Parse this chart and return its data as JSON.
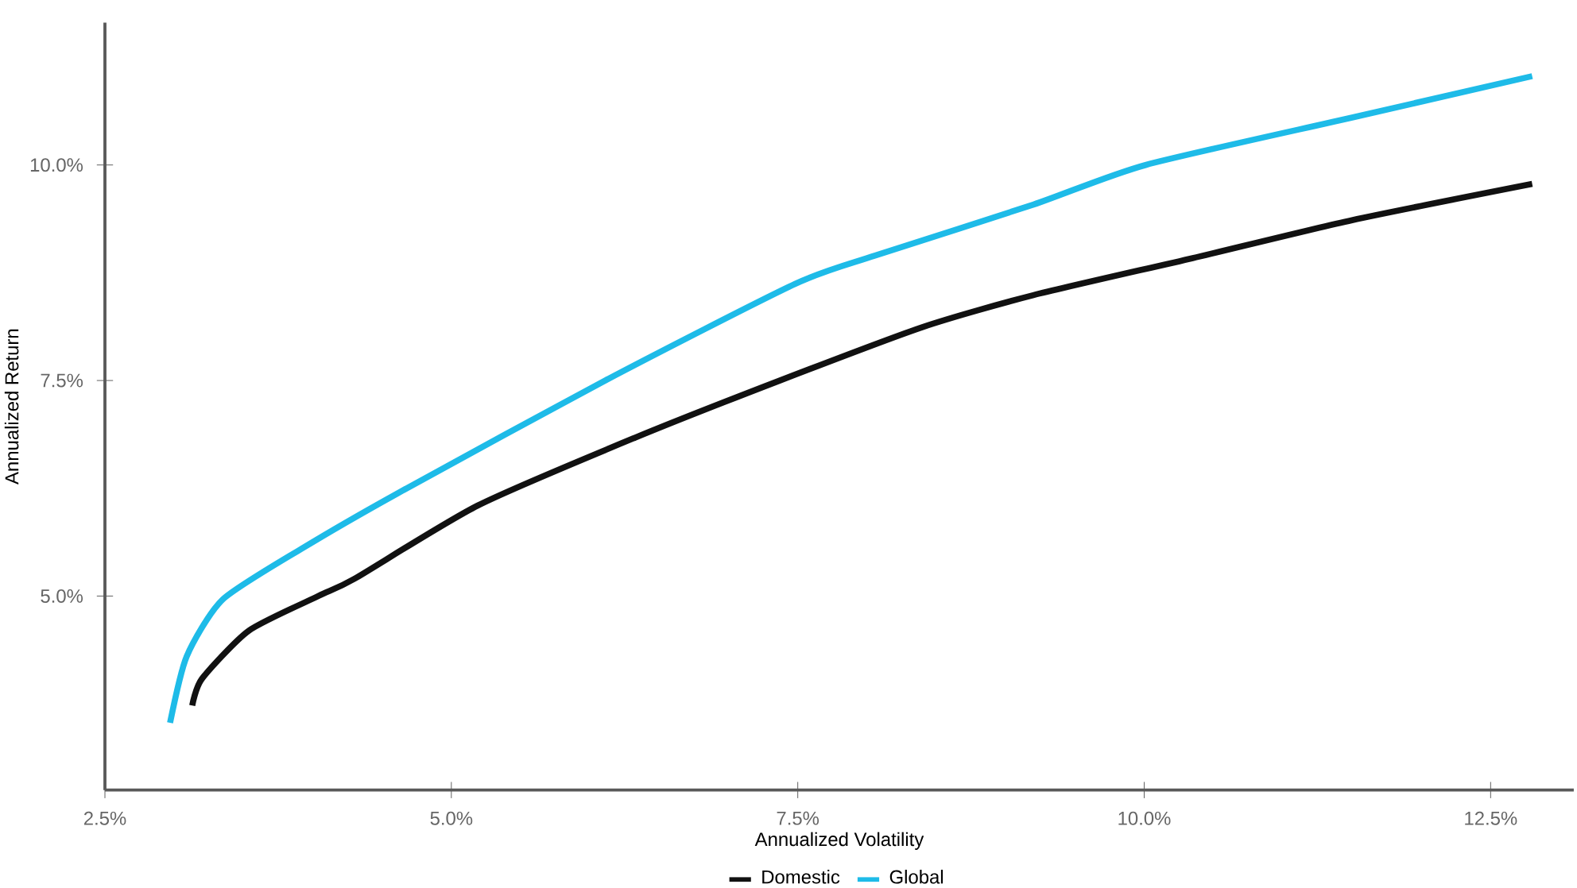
{
  "chart_data": {
    "type": "line",
    "xlabel": "Annualized Volatility",
    "ylabel": "Annualized Return",
    "xlim": [
      2.5,
      13.1
    ],
    "ylim": [
      2.75,
      11.65
    ],
    "xticks": [
      {
        "value": 2.5,
        "label": "2.5%"
      },
      {
        "value": 5.0,
        "label": "5.0%"
      },
      {
        "value": 7.5,
        "label": "7.5%"
      },
      {
        "value": 10.0,
        "label": "10.0%"
      },
      {
        "value": 12.5,
        "label": "12.5%"
      }
    ],
    "yticks": [
      {
        "value": 5.0,
        "label": "5.0%"
      },
      {
        "value": 7.5,
        "label": "7.5%"
      },
      {
        "value": 10.0,
        "label": "10.0%"
      }
    ],
    "grid": false,
    "legend": "bottom",
    "marker": "none",
    "line_style": "solid",
    "series": [
      {
        "name": "Domestic",
        "color": "#111111",
        "x": [
          3.13,
          3.2,
          3.54,
          4.04,
          4.3,
          5.19,
          6.33,
          7.37,
          8.4,
          9.2,
          10.35,
          11.5,
          12.8
        ],
        "values": [
          3.73,
          4.04,
          4.6,
          5.0,
          5.2,
          6.05,
          6.84,
          7.5,
          8.12,
          8.49,
          8.92,
          9.36,
          9.78
        ]
      },
      {
        "name": "Global",
        "color": "#1ebbe8",
        "x": [
          2.97,
          3.09,
          3.35,
          3.92,
          4.61,
          6.11,
          7.48,
          8.06,
          9.2,
          10.01,
          11.5,
          12.8
        ],
        "values": [
          3.53,
          4.3,
          4.96,
          5.55,
          6.19,
          7.5,
          8.62,
          8.95,
          9.54,
          10.0,
          10.55,
          11.03
        ]
      }
    ]
  }
}
